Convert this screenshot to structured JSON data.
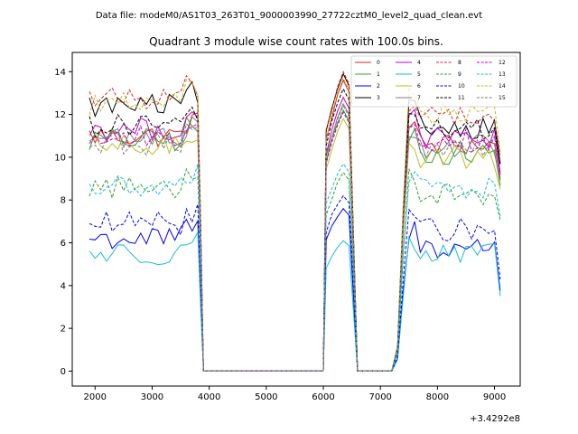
{
  "figure": {
    "suptitle": "Data file: modeM0/AS1T03_263T01_9000003990_27722cztM0_level2_quad_clean.evt",
    "title": "Quadrant 3 module wise count rates with 100.0s bins.",
    "x_offset_label": "+3.4292e8"
  },
  "chart_data": {
    "type": "line",
    "title": "Quadrant 3 module wise count rates with 100.0s bins.",
    "xlabel": "",
    "ylabel": "",
    "x_offset": "+3.4292e8",
    "xlim": [
      1600,
      9450
    ],
    "ylim": [
      -0.7,
      14.9
    ],
    "xticks": [
      2000,
      3000,
      4000,
      5000,
      6000,
      7000,
      8000,
      9000
    ],
    "yticks": [
      0,
      2,
      4,
      6,
      8,
      10,
      12,
      14
    ],
    "grid": false,
    "legend_position": "top-right",
    "legend_columns": 4,
    "segments": [
      {
        "x_start": 1900,
        "x_end": 3900
      },
      {
        "x_start": 3900,
        "x_end": 6000,
        "value": 0
      },
      {
        "x_start": 6000,
        "x_end": 6600
      },
      {
        "x_start": 6600,
        "x_end": 7200,
        "value": 0
      },
      {
        "x_start": 7200,
        "x_end": 9100
      }
    ],
    "series": [
      {
        "name": "0",
        "color": "#d62728",
        "style": "solid",
        "levels": [
          11.0,
          13.6,
          10.6
        ]
      },
      {
        "name": "1",
        "color": "#2ca02c",
        "style": "solid",
        "levels": [
          10.8,
          12.2,
          10.2
        ]
      },
      {
        "name": "2",
        "color": "#0000ff",
        "style": "solid",
        "levels": [
          6.2,
          7.6,
          5.8
        ]
      },
      {
        "name": "3",
        "color": "#000000",
        "style": "solid",
        "levels": [
          12.4,
          13.9,
          11.4
        ]
      },
      {
        "name": "4",
        "color": "#c000c0",
        "style": "solid",
        "levels": [
          11.3,
          12.8,
          10.9
        ]
      },
      {
        "name": "5",
        "color": "#17becf",
        "style": "solid",
        "levels": [
          5.5,
          6.1,
          5.4
        ]
      },
      {
        "name": "6",
        "color": "#bcbd22",
        "style": "solid",
        "levels": [
          10.5,
          11.8,
          10.0
        ]
      },
      {
        "name": "7",
        "color": "#7f7f7f",
        "style": "solid",
        "levels": [
          10.9,
          12.5,
          10.5
        ]
      },
      {
        "name": "8",
        "color": "#d62728",
        "style": "dashed",
        "levels": [
          12.8,
          14.0,
          11.9
        ]
      },
      {
        "name": "9",
        "color": "#2ca02c",
        "style": "dashed",
        "levels": [
          8.6,
          9.3,
          8.3
        ]
      },
      {
        "name": "10",
        "color": "#0000ff",
        "style": "dashed",
        "levels": [
          6.9,
          8.2,
          6.6
        ]
      },
      {
        "name": "11",
        "color": "#000000",
        "style": "dashed",
        "levels": [
          11.5,
          13.2,
          11.3
        ]
      },
      {
        "name": "12",
        "color": "#c000c0",
        "style": "dashed",
        "levels": [
          10.9,
          12.1,
          10.8
        ]
      },
      {
        "name": "13",
        "color": "#17becf",
        "style": "dashed",
        "levels": [
          8.6,
          9.7,
          8.5
        ]
      },
      {
        "name": "14",
        "color": "#bcbd22",
        "style": "dashed",
        "levels": [
          12.5,
          13.7,
          12.0
        ]
      },
      {
        "name": "15",
        "color": "#7f7f7f",
        "style": "dashed",
        "levels": [
          10.6,
          12.4,
          10.4
        ]
      }
    ]
  }
}
